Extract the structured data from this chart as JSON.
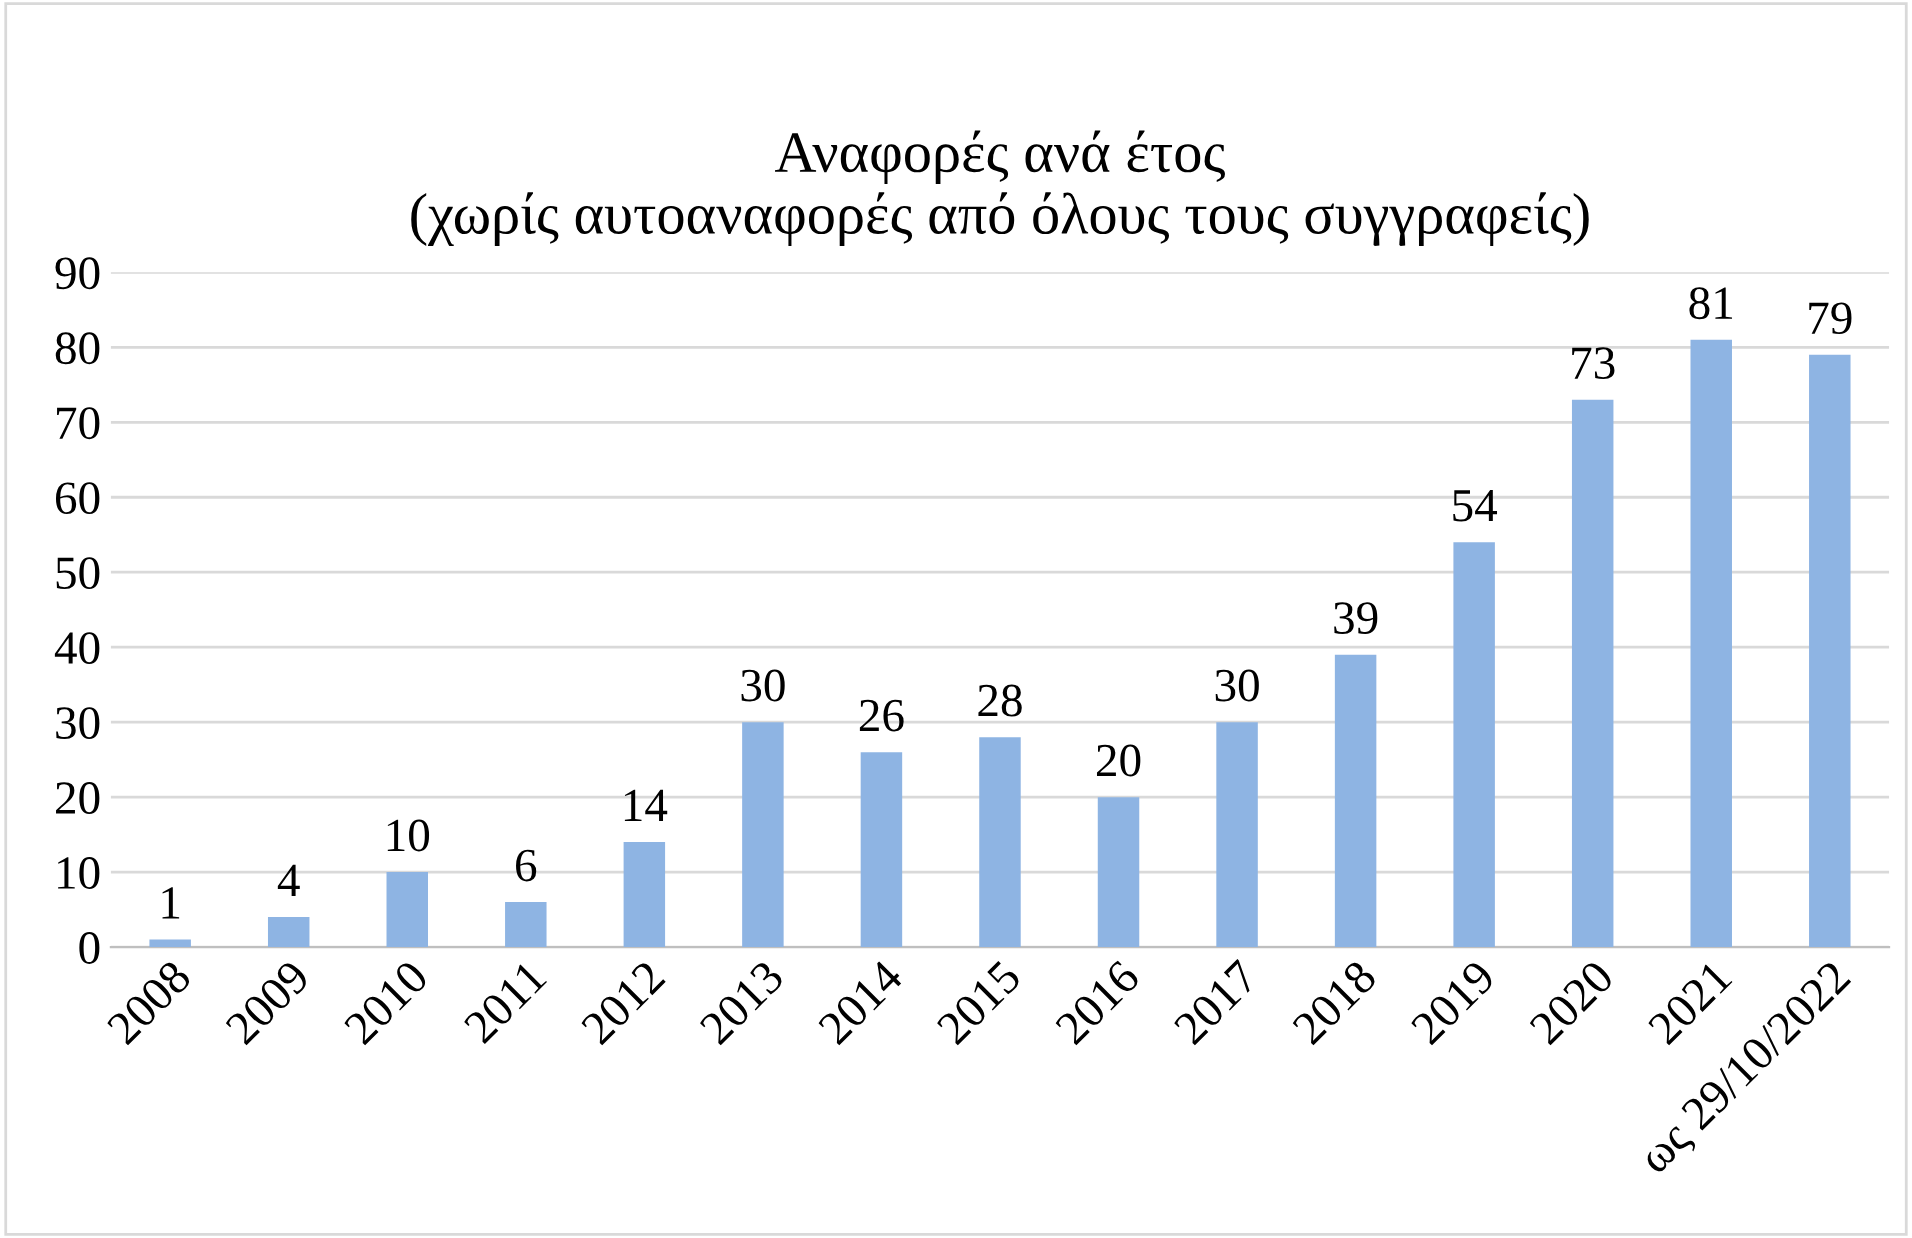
{
  "chart_data": {
    "type": "bar",
    "title": "Αναφορές ανά έτος\n(χωρίς αυτοαναφορές από όλους τους συγγραφείς)",
    "categories": [
      "2008",
      "2009",
      "2010",
      "2011",
      "2012",
      "2013",
      "2014",
      "2015",
      "2016",
      "2017",
      "2018",
      "2019",
      "2020",
      "2021",
      "ως 29/10/2022"
    ],
    "values": [
      1,
      4,
      10,
      6,
      14,
      30,
      26,
      28,
      20,
      30,
      39,
      54,
      73,
      81,
      79
    ],
    "color": "#8eb4e3",
    "ylim": [
      0,
      90
    ],
    "yticks": [
      0,
      10,
      20,
      30,
      40,
      50,
      60,
      70,
      80,
      90
    ],
    "grid": "y",
    "data_labels": true
  }
}
